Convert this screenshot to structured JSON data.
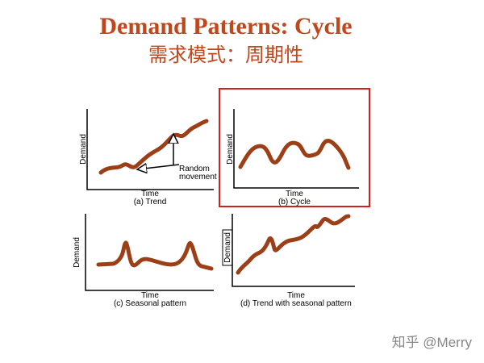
{
  "title": "Demand Patterns: Cycle",
  "subtitle": "需求模式：周期性",
  "panels": [
    {
      "y_label": "Demand",
      "x_label": "Time",
      "caption": "(a) Trend",
      "annotation": [
        "Random",
        "movement"
      ]
    },
    {
      "y_label": "Demand",
      "x_label": "Time",
      "caption": "(b) Cycle"
    },
    {
      "y_label": "Demand",
      "x_label": "Time",
      "caption": "(c) Seasonal pattern"
    },
    {
      "y_label": "Demand",
      "x_label": "Time",
      "caption": "(d) Trend with seasonal pattern"
    }
  ],
  "watermark": "知乎 @Merry"
}
